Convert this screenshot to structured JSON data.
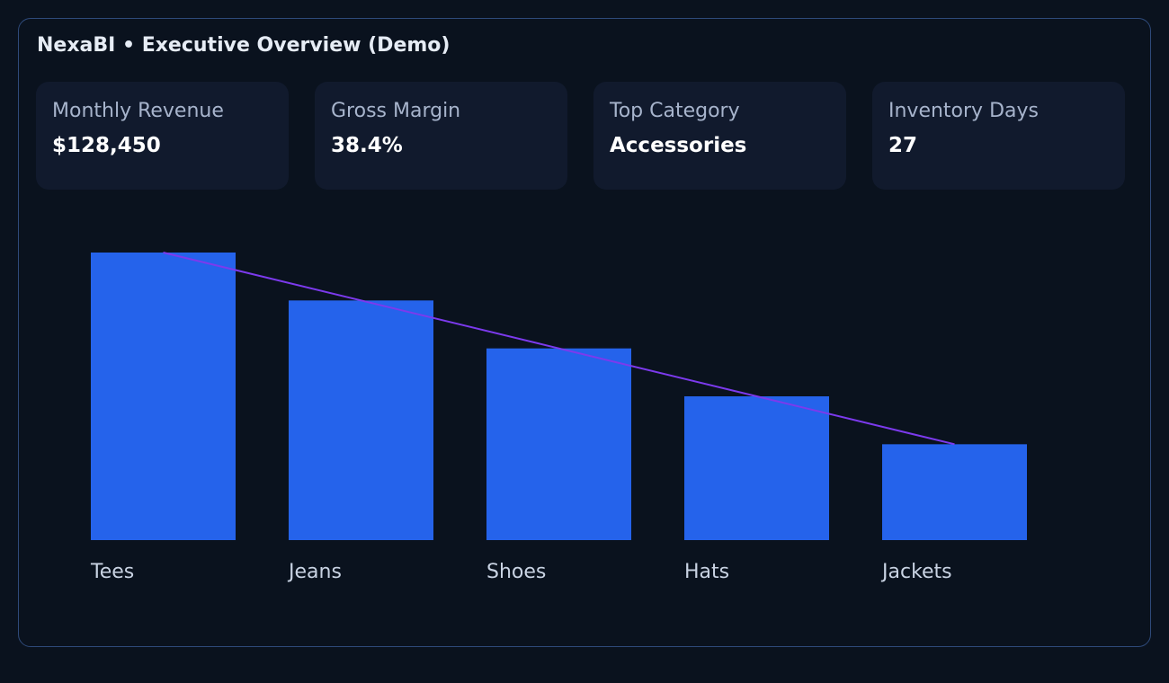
{
  "app": {
    "title": "NexaBI • Executive Overview (Demo)"
  },
  "kpis": [
    {
      "label": "Monthly Revenue",
      "value": "$128,450"
    },
    {
      "label": "Gross Margin",
      "value": "38.4%"
    },
    {
      "label": "Top Category",
      "value": "Accessories"
    },
    {
      "label": "Inventory Days",
      "value": "27"
    }
  ],
  "colors": {
    "background": "#0a121e",
    "card": "#111a2d",
    "border": "#2e4a7a",
    "bar": "#2563eb",
    "trend": "#7c3aed",
    "label": "#c9d3e3"
  },
  "chart_data": {
    "type": "bar",
    "categories": [
      "Tees",
      "Jeans",
      "Shoes",
      "Hats",
      "Jackets"
    ],
    "values": [
      6,
      5,
      4,
      3,
      2
    ],
    "ylim": [
      0,
      6
    ],
    "trendline": true,
    "grid": false,
    "title": "",
    "xlabel": "",
    "ylabel": ""
  }
}
